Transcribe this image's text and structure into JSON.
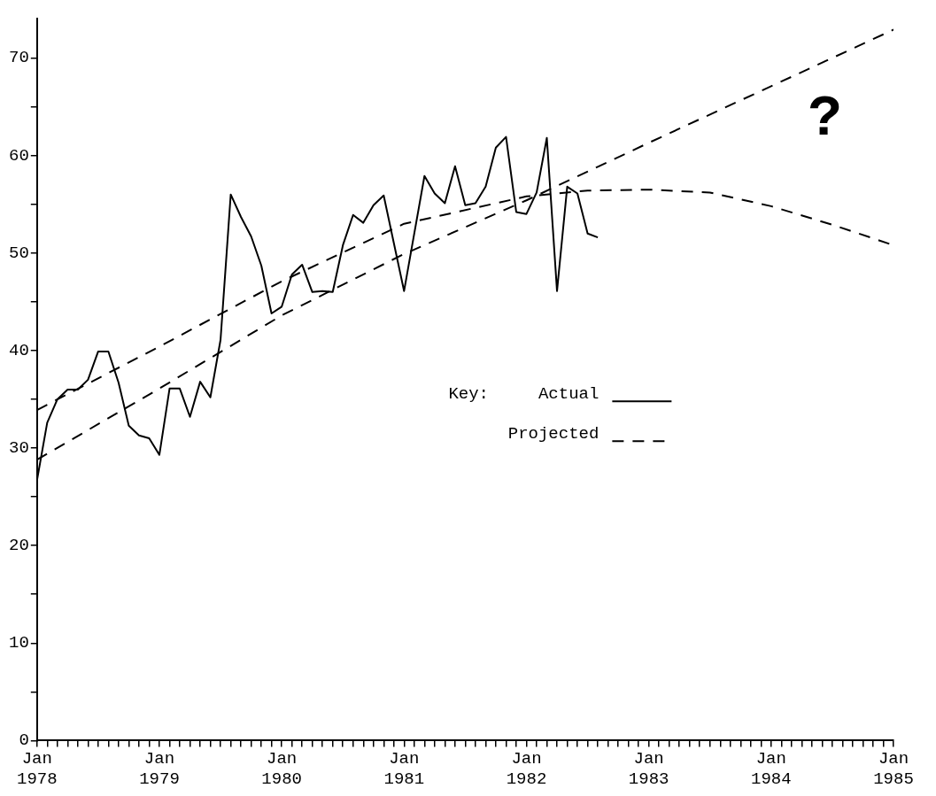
{
  "chart_data": {
    "type": "line",
    "legend_title": "Key:",
    "legend": "center",
    "grid": false,
    "marker": "none",
    "xlim": [
      "1978-01",
      "1985-01"
    ],
    "ylim": [
      0,
      74
    ],
    "yticks": [
      0,
      {
        "value": 5,
        "label": null
      },
      10,
      {
        "value": 15,
        "label": null
      },
      20,
      {
        "value": 25,
        "label": null
      },
      30,
      {
        "value": 35,
        "label": null
      },
      40,
      {
        "value": 45,
        "label": null
      },
      50,
      {
        "value": 55,
        "label": null
      },
      60,
      {
        "value": 65,
        "label": null
      },
      70
    ],
    "xticks": [
      {
        "value": "1978-01",
        "label": "Jan 1978"
      },
      {
        "value": "1978-02",
        "label": null
      },
      {
        "value": "1978-03",
        "label": null
      },
      {
        "value": "1978-04",
        "label": null
      },
      {
        "value": "1978-05",
        "label": null
      },
      {
        "value": "1978-06",
        "label": null
      },
      {
        "value": "1978-07",
        "label": null
      },
      {
        "value": "1978-08",
        "label": null
      },
      {
        "value": "1978-09",
        "label": null
      },
      {
        "value": "1978-10",
        "label": null
      },
      {
        "value": "1978-11",
        "label": null
      },
      {
        "value": "1978-12",
        "label": null
      },
      {
        "value": "1979-01",
        "label": "Jan 1979"
      },
      {
        "value": "1979-02",
        "label": null
      },
      {
        "value": "1979-03",
        "label": null
      },
      {
        "value": "1979-04",
        "label": null
      },
      {
        "value": "1979-05",
        "label": null
      },
      {
        "value": "1979-06",
        "label": null
      },
      {
        "value": "1979-07",
        "label": null
      },
      {
        "value": "1979-08",
        "label": null
      },
      {
        "value": "1979-09",
        "label": null
      },
      {
        "value": "1979-10",
        "label": null
      },
      {
        "value": "1979-11",
        "label": null
      },
      {
        "value": "1979-12",
        "label": null
      },
      {
        "value": "1980-01",
        "label": "Jan 1980"
      },
      {
        "value": "1980-02",
        "label": null
      },
      {
        "value": "1980-03",
        "label": null
      },
      {
        "value": "1980-04",
        "label": null
      },
      {
        "value": "1980-05",
        "label": null
      },
      {
        "value": "1980-06",
        "label": null
      },
      {
        "value": "1980-07",
        "label": null
      },
      {
        "value": "1980-08",
        "label": null
      },
      {
        "value": "1980-09",
        "label": null
      },
      {
        "value": "1980-10",
        "label": null
      },
      {
        "value": "1980-11",
        "label": null
      },
      {
        "value": "1980-12",
        "label": null
      },
      {
        "value": "1981-01",
        "label": "Jan 1981"
      },
      {
        "value": "1981-02",
        "label": null
      },
      {
        "value": "1981-03",
        "label": null
      },
      {
        "value": "1981-04",
        "label": null
      },
      {
        "value": "1981-05",
        "label": null
      },
      {
        "value": "1981-06",
        "label": null
      },
      {
        "value": "1981-07",
        "label": null
      },
      {
        "value": "1981-08",
        "label": null
      },
      {
        "value": "1981-09",
        "label": null
      },
      {
        "value": "1981-10",
        "label": null
      },
      {
        "value": "1981-11",
        "label": null
      },
      {
        "value": "1981-12",
        "label": null
      },
      {
        "value": "1982-01",
        "label": "Jan 1982"
      },
      {
        "value": "1982-02",
        "label": null
      },
      {
        "value": "1982-03",
        "label": null
      },
      {
        "value": "1982-04",
        "label": null
      },
      {
        "value": "1982-05",
        "label": null
      },
      {
        "value": "1982-06",
        "label": null
      },
      {
        "value": "1982-07",
        "label": null
      },
      {
        "value": "1982-08",
        "label": null
      },
      {
        "value": "1982-09",
        "label": null
      },
      {
        "value": "1982-10",
        "label": null
      },
      {
        "value": "1982-11",
        "label": null
      },
      {
        "value": "1982-12",
        "label": null
      },
      {
        "value": "1983-01",
        "label": "Jan 1983"
      },
      {
        "value": "1983-02",
        "label": null
      },
      {
        "value": "1983-03",
        "label": null
      },
      {
        "value": "1983-04",
        "label": null
      },
      {
        "value": "1983-05",
        "label": null
      },
      {
        "value": "1983-06",
        "label": null
      },
      {
        "value": "1983-07",
        "label": null
      },
      {
        "value": "1983-08",
        "label": null
      },
      {
        "value": "1983-09",
        "label": null
      },
      {
        "value": "1983-10",
        "label": null
      },
      {
        "value": "1983-11",
        "label": null
      },
      {
        "value": "1983-12",
        "label": null
      },
      {
        "value": "1984-01",
        "label": "Jan 1984"
      },
      {
        "value": "1984-02",
        "label": null
      },
      {
        "value": "1984-03",
        "label": null
      },
      {
        "value": "1984-04",
        "label": null
      },
      {
        "value": "1984-05",
        "label": null
      },
      {
        "value": "1984-06",
        "label": null
      },
      {
        "value": "1984-07",
        "label": null
      },
      {
        "value": "1984-08",
        "label": null
      },
      {
        "value": "1984-09",
        "label": null
      },
      {
        "value": "1984-10",
        "label": null
      },
      {
        "value": "1984-11",
        "label": null
      },
      {
        "value": "1984-12",
        "label": null
      },
      {
        "value": "1985-01",
        "label": "Jan 1985"
      }
    ],
    "series": [
      {
        "name": "Actual",
        "color": "#000000",
        "line_style": "solid",
        "x": [
          "1978-01",
          "1978-02",
          "1978-03",
          "1978-04",
          "1978-05",
          "1978-06",
          "1978-07",
          "1978-08",
          "1978-09",
          "1978-10",
          "1978-11",
          "1978-12",
          "1979-01",
          "1979-02",
          "1979-03",
          "1979-04",
          "1979-05",
          "1979-06",
          "1979-07",
          "1979-08",
          "1979-09",
          "1979-10",
          "1979-11",
          "1979-12",
          "1980-01",
          "1980-02",
          "1980-03",
          "1980-04",
          "1980-05",
          "1980-06",
          "1980-07",
          "1980-08",
          "1980-09",
          "1980-10",
          "1980-11",
          "1980-12",
          "1981-01",
          "1981-02",
          "1981-03",
          "1981-04",
          "1981-05",
          "1981-06",
          "1981-07",
          "1981-08",
          "1981-09",
          "1981-10",
          "1981-11",
          "1981-12",
          "1982-01",
          "1982-02",
          "1982-03",
          "1982-04",
          "1982-05",
          "1982-06",
          "1982-07",
          "1982-08"
        ],
        "values": [
          26.7,
          32.6,
          35.0,
          36.0,
          36.0,
          37.0,
          39.9,
          39.9,
          36.7,
          32.3,
          31.3,
          31.0,
          29.3,
          36.1,
          36.1,
          33.2,
          36.8,
          35.2,
          41.1,
          56.0,
          53.7,
          51.7,
          48.7,
          43.8,
          44.5,
          47.8,
          48.8,
          46.0,
          46.1,
          46.0,
          50.8,
          53.9,
          53.1,
          54.9,
          55.9,
          51.0,
          46.1,
          52.0,
          57.9,
          56.1,
          55.1,
          58.9,
          54.9,
          55.1,
          56.8,
          60.8,
          61.9,
          54.2,
          54.0,
          56.2,
          61.8,
          46.1,
          56.8,
          56.1,
          52.0,
          51.6
        ]
      },
      {
        "name": "Projected",
        "color": "#000000",
        "line_style": "dashed",
        "x": [
          "1978-01",
          "1979-01",
          "1980-01",
          "1981-01",
          "1982-01",
          "1982-07",
          "1983-01",
          "1983-07",
          "1984-01",
          "1984-07",
          "1985-01"
        ],
        "values": [
          33.9,
          40.4,
          47.1,
          53.0,
          55.8,
          56.4,
          56.5,
          56.2,
          54.8,
          52.9,
          50.8
        ]
      },
      {
        "color": "#000000",
        "line_style": "dashed",
        "x": [
          "1978-01",
          "1979-01",
          "1980-01",
          "1981-01",
          "1982-01",
          "1983-01",
          "1984-01",
          "1985-01"
        ],
        "values": [
          28.8,
          36.1,
          43.6,
          49.9,
          55.4,
          61.3,
          67.1,
          72.9
        ]
      }
    ],
    "annotations": [
      "?"
    ]
  }
}
